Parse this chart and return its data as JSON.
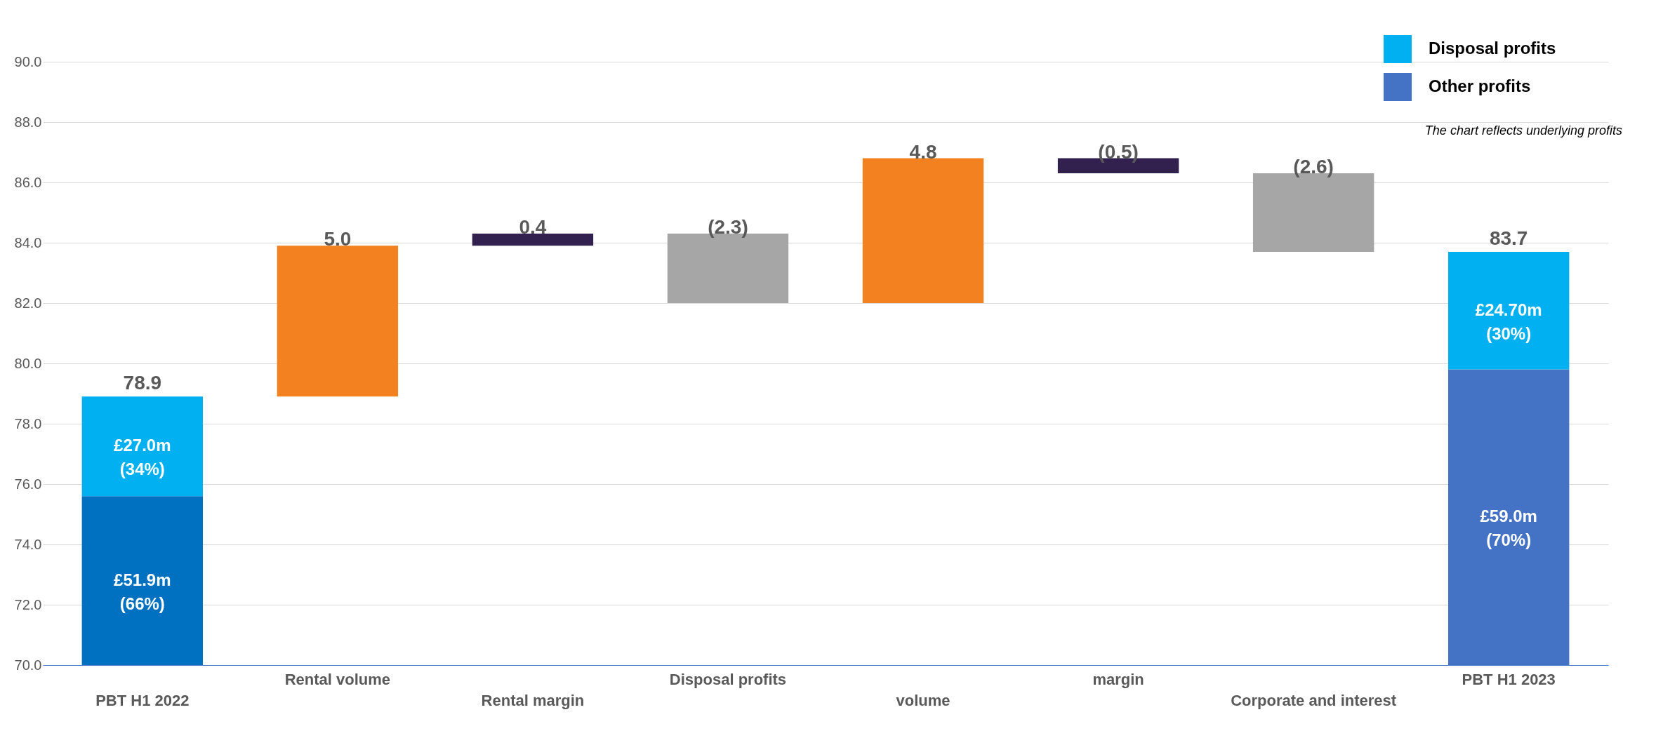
{
  "chart_data": {
    "type": "bar",
    "categories": [
      "PBT H1 2022",
      "Rental volume",
      "Rental margin",
      "Disposal profits",
      "volume",
      "margin",
      "Corporate and interest",
      "PBT H1 2023"
    ],
    "series": [
      {
        "name": "Other profits",
        "color": "#4472c4",
        "colors": [
          "#0070c0",
          null,
          null,
          null,
          null,
          null,
          null,
          "#4472c4"
        ],
        "base": [
          70,
          null,
          null,
          null,
          null,
          null,
          null,
          70
        ],
        "values": [
          5.6,
          null,
          null,
          null,
          null,
          null,
          null,
          9.8
        ]
      },
      {
        "name": "Disposal profits",
        "color": "#00b0f0",
        "base": [
          75.6,
          null,
          null,
          null,
          null,
          null,
          null,
          79.8
        ],
        "values": [
          3.3,
          null,
          null,
          null,
          null,
          null,
          null,
          3.9
        ]
      },
      {
        "colors": [
          null,
          "#f48120",
          "#32204f",
          "#a6a6a6",
          "#f48120",
          "#32204f",
          "#a6a6a6",
          null
        ],
        "base": [
          null,
          78.9,
          83.9,
          84.3,
          82.0,
          86.8,
          86.3,
          null
        ],
        "values": [
          null,
          5.0,
          0.4,
          -2.3,
          4.8,
          -0.5,
          -2.6,
          null
        ],
        "value_labels": [
          null,
          "5.0",
          "0.4",
          "(2.3)",
          "4.8",
          "(0.5)",
          "(2.6)",
          null
        ]
      }
    ],
    "ylim": [
      70,
      90
    ],
    "yticks": [
      {
        "value": 70,
        "label": "70.0"
      },
      {
        "value": 72,
        "label": "72.0"
      },
      {
        "value": 74,
        "label": "74.0"
      },
      {
        "value": 76,
        "label": "76.0"
      },
      {
        "value": 78,
        "label": "78.0"
      },
      {
        "value": 80,
        "label": "80.0"
      },
      {
        "value": 82,
        "label": "82.0"
      },
      {
        "value": 84,
        "label": "84.0"
      },
      {
        "value": 86,
        "label": "86.0"
      },
      {
        "value": 88,
        "label": "88.0"
      },
      {
        "value": 90,
        "label": "90.0"
      }
    ],
    "grid": "y",
    "legend": "top right",
    "annotations": [
      "The chart reflects underlying profits",
      {
        "text": "78.9",
        "x": "PBT H1 2022",
        "y": 78.9
      },
      {
        "text": "83.7",
        "x": "PBT H1 2023",
        "y": 83.7
      },
      "£51.9m (66%)",
      "£59.0m (70%)",
      "£27.0m (34%)",
      "£24.70m (30%)"
    ]
  }
}
